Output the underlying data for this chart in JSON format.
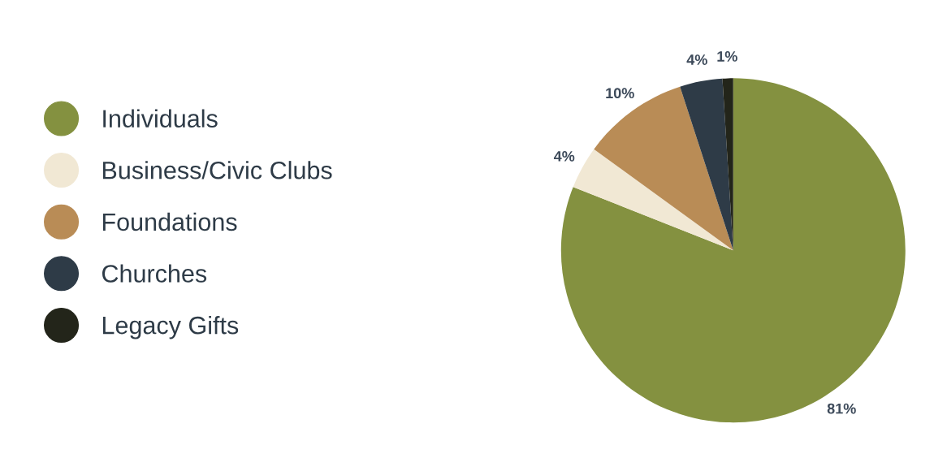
{
  "chart_data": {
    "type": "pie",
    "categories": [
      "Individuals",
      "Business/Civic Clubs",
      "Foundations",
      "Churches",
      "Legacy Gifts"
    ],
    "values": [
      81,
      4,
      10,
      4,
      1
    ],
    "value_labels": [
      "81%",
      "4%",
      "10%",
      "4%",
      "1%"
    ],
    "colors": [
      "#849140",
      "#f1e8d4",
      "#b98c56",
      "#2e3b47",
      "#23251a"
    ],
    "legend": "left"
  }
}
